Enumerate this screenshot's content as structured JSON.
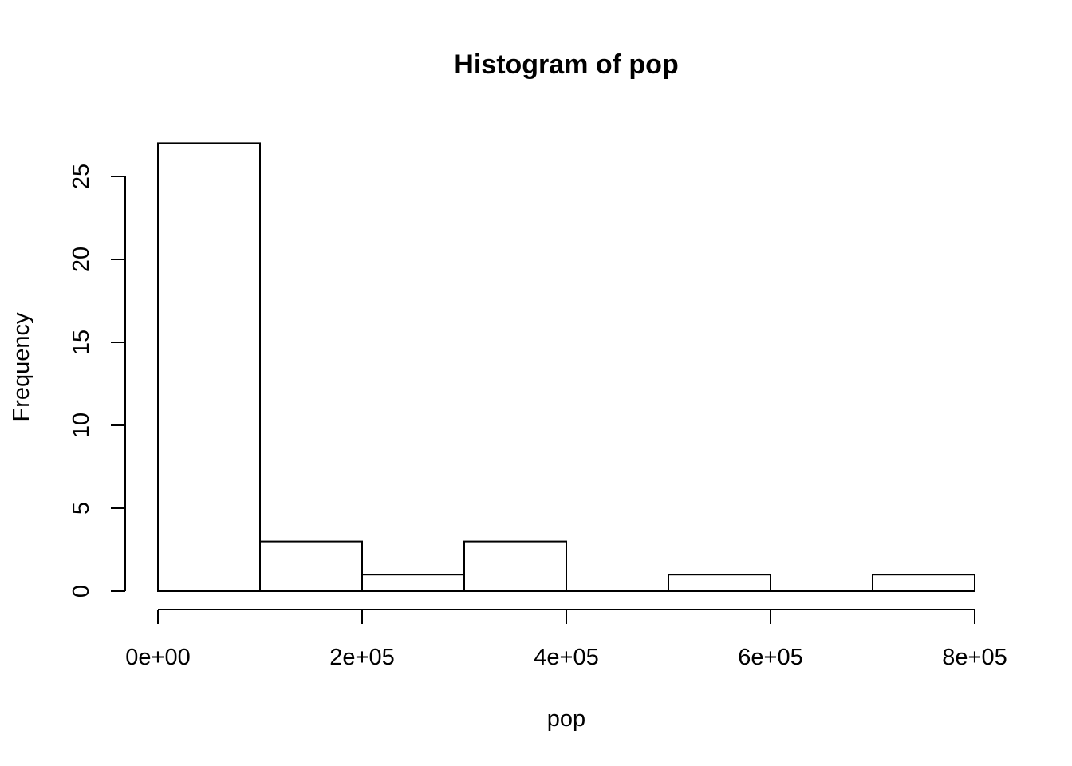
{
  "chart_data": {
    "type": "bar",
    "title": "Histogram of pop",
    "xlabel": "pop",
    "ylabel": "Frequency",
    "bins": [
      {
        "start": 0,
        "end": 100000,
        "count": 27
      },
      {
        "start": 100000,
        "end": 200000,
        "count": 3
      },
      {
        "start": 200000,
        "end": 300000,
        "count": 1
      },
      {
        "start": 300000,
        "end": 400000,
        "count": 3
      },
      {
        "start": 400000,
        "end": 500000,
        "count": 0
      },
      {
        "start": 500000,
        "end": 600000,
        "count": 1
      },
      {
        "start": 600000,
        "end": 700000,
        "count": 0
      },
      {
        "start": 700000,
        "end": 800000,
        "count": 1
      }
    ],
    "xlim": [
      0,
      800000
    ],
    "ylim": [
      0,
      27
    ],
    "x_ticks": [
      {
        "value": 0,
        "label": "0e+00"
      },
      {
        "value": 200000,
        "label": "2e+05"
      },
      {
        "value": 400000,
        "label": "4e+05"
      },
      {
        "value": 600000,
        "label": "6e+05"
      },
      {
        "value": 800000,
        "label": "8e+05"
      }
    ],
    "y_ticks": [
      {
        "value": 0,
        "label": "0"
      },
      {
        "value": 5,
        "label": "5"
      },
      {
        "value": 10,
        "label": "10"
      },
      {
        "value": 15,
        "label": "15"
      },
      {
        "value": 20,
        "label": "20"
      },
      {
        "value": 25,
        "label": "25"
      }
    ],
    "grid": false,
    "colors": {
      "bar_fill": "#ffffff",
      "bar_stroke": "#000000"
    }
  }
}
